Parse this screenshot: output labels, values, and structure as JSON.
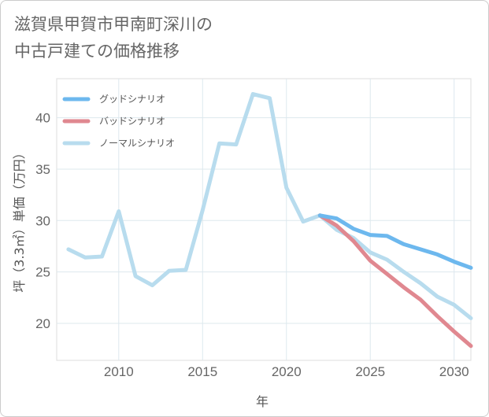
{
  "title_lines": [
    "滋賀県甲賀市甲南町深川の",
    "中古戸建ての価格推移"
  ],
  "chart_data": {
    "type": "line",
    "title": "滋賀県甲賀市甲南町深川の中古戸建ての価格推移",
    "xlabel": "年",
    "ylabel": "坪（3.3㎡）単価（万円）",
    "xlim": [
      2006.3,
      2031
    ],
    "ylim": [
      16.4,
      43.8
    ],
    "xticks": [
      2010,
      2015,
      2020,
      2025,
      2030
    ],
    "yticks": [
      20,
      25,
      30,
      35,
      40
    ],
    "grid": true,
    "legend_position": "top-left",
    "series": [
      {
        "name": "グッドシナリオ",
        "color": "#6db8ee",
        "x": [
          2022,
          2023,
          2024,
          2025,
          2026,
          2027,
          2028,
          2029,
          2030,
          2031
        ],
        "y": [
          30.5,
          30.2,
          29.2,
          28.6,
          28.5,
          27.7,
          27.2,
          26.7,
          26.0,
          25.4
        ]
      },
      {
        "name": "バッドシナリオ",
        "color": "#e08890",
        "x": [
          2022,
          2023,
          2024,
          2025,
          2026,
          2027,
          2028,
          2029,
          2030,
          2031
        ],
        "y": [
          30.5,
          29.5,
          28.0,
          26.1,
          24.8,
          23.5,
          22.3,
          20.7,
          19.2,
          17.8
        ]
      },
      {
        "name": "ノーマルシナリオ",
        "color": "#b8dcee",
        "x": [
          2007,
          2008,
          2009,
          2010,
          2011,
          2012,
          2013,
          2014,
          2015,
          2016,
          2017,
          2018,
          2019,
          2020,
          2021,
          2022,
          2023,
          2024,
          2025,
          2026,
          2027,
          2028,
          2029,
          2030,
          2031
        ],
        "y": [
          27.2,
          26.4,
          26.5,
          30.9,
          24.6,
          23.7,
          25.1,
          25.2,
          31.0,
          37.5,
          37.4,
          42.3,
          41.9,
          33.2,
          29.9,
          30.5,
          29.1,
          28.3,
          26.9,
          26.2,
          25.0,
          23.9,
          22.6,
          21.8,
          20.5
        ]
      }
    ]
  }
}
